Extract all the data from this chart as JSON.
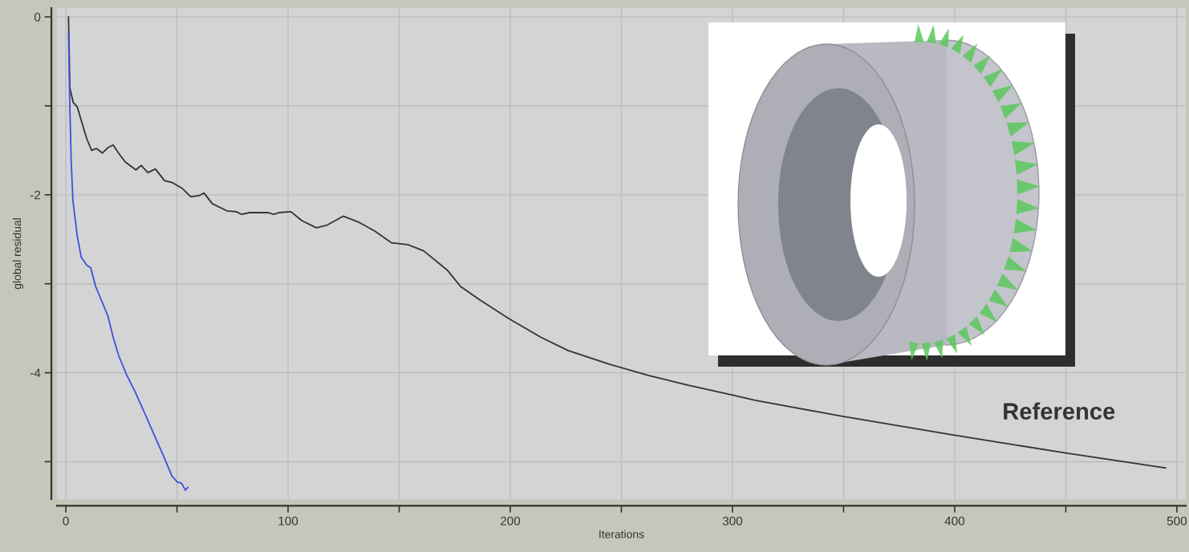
{
  "chart_data": {
    "type": "line",
    "xlabel": "Iterations",
    "ylabel": "global residual",
    "xlim": [
      -4,
      504
    ],
    "xticks": [
      0,
      {
        "value": 50,
        "label": null
      },
      100,
      {
        "value": 150,
        "label": null
      },
      200,
      {
        "value": 250,
        "label": null
      },
      300,
      {
        "value": 350,
        "label": null
      },
      400,
      {
        "value": 450,
        "label": null
      },
      500
    ],
    "ylim": [
      -5.42,
      0.1
    ],
    "yticks": [
      0,
      {
        "value": -1,
        "label": null
      },
      -2,
      {
        "value": -3,
        "label": null
      },
      -4,
      {
        "value": -5,
        "label": null
      }
    ],
    "grid": true,
    "line_style": "solid",
    "series": [
      {
        "name": "Reference",
        "color": "#333333",
        "x": [
          1.2,
          1.8,
          3.3,
          5.1,
          6.9,
          9.4,
          11.6,
          13.8,
          16.5,
          18.9,
          21.3,
          23.7,
          26.7,
          31.5,
          33.9,
          36.9,
          40.3,
          44.4,
          47.7,
          52.5,
          56.2,
          59.8,
          62.2,
          65.9,
          72.5,
          76.7,
          79.1,
          82.7,
          91.1,
          93.5,
          95.9,
          101.3,
          106.2,
          112.7,
          117.6,
          124.8,
          132.0,
          139.2,
          146.6,
          153.8,
          161.0,
          171.8,
          177.6,
          186.3,
          199.3,
          213.7,
          226.0,
          244.0,
          262.1,
          280.1,
          300.0,
          310.1,
          349.5,
          399.3,
          449.5,
          494.9
        ],
        "values": [
          0,
          -0.8,
          -0.96,
          -1.01,
          -1.16,
          -1.37,
          -1.5,
          -1.48,
          -1.53,
          -1.47,
          -1.44,
          -1.53,
          -1.63,
          -1.72,
          -1.67,
          -1.75,
          -1.71,
          -1.84,
          -1.86,
          -1.93,
          -2.02,
          -2.01,
          -1.98,
          -2.1,
          -2.18,
          -2.19,
          -2.22,
          -2.2,
          -2.2,
          -2.22,
          -2.2,
          -2.19,
          -2.29,
          -2.37,
          -2.34,
          -2.24,
          -2.31,
          -2.41,
          -2.54,
          -2.56,
          -2.63,
          -2.85,
          -3.03,
          -3.18,
          -3.39,
          -3.6,
          -3.75,
          -3.9,
          -4.03,
          -4.14,
          -4.25,
          -4.31,
          -4.49,
          -4.7,
          -4.9,
          -5.07
        ]
      },
      {
        "color": "#3f4fe0",
        "x": [
          1.2,
          1.8,
          2.4,
          3.2,
          5.1,
          6.9,
          9.4,
          11.2,
          13.4,
          18.9,
          21.3,
          23.8,
          27.3,
          30.9,
          36.3,
          39.4,
          44.2,
          47.7,
          50.2,
          52.0,
          53.8,
          54.9
        ],
        "values": [
          -0.19,
          -1.01,
          -1.62,
          -2.07,
          -2.46,
          -2.7,
          -2.79,
          -2.82,
          -3.03,
          -3.36,
          -3.6,
          -3.81,
          -4.02,
          -4.2,
          -4.5,
          -4.68,
          -4.95,
          -5.16,
          -5.23,
          -5.24,
          -5.32,
          -5.29
        ]
      }
    ]
  }
}
